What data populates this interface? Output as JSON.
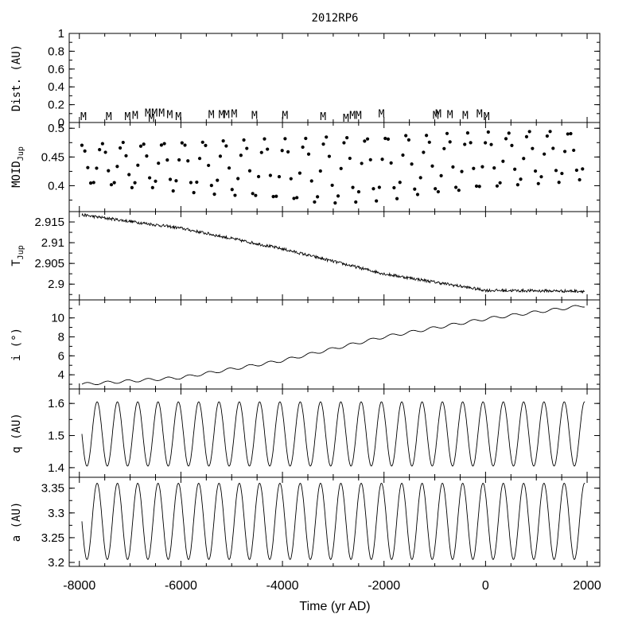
{
  "chart_data": {
    "type": "line",
    "title": "2012RP6",
    "xlabel": "Time (yr AD)",
    "xlim": [
      -8200,
      2250
    ],
    "x_ticks": [
      -8000,
      -6000,
      -4000,
      -2000,
      0,
      2000
    ],
    "x_tick_labels": [
      "-8000",
      "-6000",
      "-4000",
      "-2000",
      "0",
      "2000"
    ],
    "panels": [
      {
        "key": "dist",
        "type": "markers",
        "ylabel": "Dist. (AU)",
        "ylabel_main": "Dist. (AU)",
        "ylabel_sub": "",
        "ylim": [
          0,
          1
        ],
        "y_ticks": [
          0,
          0.2,
          0.4,
          0.6,
          0.8,
          1
        ],
        "y_tick_labels": [
          "0",
          "0.2",
          "0.4",
          "0.6",
          "0.8",
          "1"
        ],
        "marker_text": "M",
        "markers": [
          {
            "x": -7920,
            "y": 0.02
          },
          {
            "x": -7420,
            "y": 0.02
          },
          {
            "x": -7050,
            "y": 0.02
          },
          {
            "x": -6900,
            "y": 0.03
          },
          {
            "x": -6650,
            "y": 0.06
          },
          {
            "x": -6580,
            "y": 0.0
          },
          {
            "x": -6520,
            "y": 0.06
          },
          {
            "x": -6380,
            "y": 0.06
          },
          {
            "x": -6220,
            "y": 0.04
          },
          {
            "x": -6050,
            "y": 0.02
          },
          {
            "x": -5400,
            "y": 0.04
          },
          {
            "x": -5200,
            "y": 0.04
          },
          {
            "x": -5100,
            "y": 0.04
          },
          {
            "x": -4950,
            "y": 0.05
          },
          {
            "x": -4550,
            "y": 0.03
          },
          {
            "x": -3950,
            "y": 0.03
          },
          {
            "x": -3200,
            "y": 0.02
          },
          {
            "x": -2750,
            "y": 0.0
          },
          {
            "x": -2620,
            "y": 0.03
          },
          {
            "x": -2500,
            "y": 0.03
          },
          {
            "x": -2050,
            "y": 0.05
          },
          {
            "x": -980,
            "y": 0.03
          },
          {
            "x": -930,
            "y": 0.05
          },
          {
            "x": -700,
            "y": 0.04
          },
          {
            "x": -400,
            "y": 0.03
          },
          {
            "x": -120,
            "y": 0.05
          },
          {
            "x": 20,
            "y": 0.02
          }
        ]
      },
      {
        "key": "moid",
        "type": "scatter",
        "ylabel": "MOID_Jup",
        "ylabel_main": "MOID",
        "ylabel_sub": "Jup",
        "ylim": [
          0.355,
          0.51
        ],
        "y_ticks": [
          0.4,
          0.45,
          0.5
        ],
        "y_tick_labels": [
          "0.4",
          "0.45",
          "0.5"
        ],
        "period": 400,
        "x_start": -7950,
        "x_end": 1960,
        "step": 58,
        "upper_start": 0.472,
        "upper_end": 0.497,
        "lower_start": 0.405,
        "lower_mid": 0.368,
        "lower_end": 0.412
      },
      {
        "key": "tjup",
        "type": "line",
        "ylabel": "T_Jup",
        "ylabel_main": "T",
        "ylabel_sub": "Jup",
        "ylim": [
          2.8962,
          2.9175
        ],
        "y_ticks": [
          2.9,
          2.905,
          2.91,
          2.915
        ],
        "y_tick_labels": [
          "2.9",
          "2.905",
          "2.91",
          "2.915"
        ],
        "trend_x": [
          -7950,
          -6000,
          -4000,
          -2000,
          0,
          1950
        ],
        "trend_y": [
          2.9167,
          2.9135,
          2.9085,
          2.9025,
          2.8985,
          2.8983
        ],
        "noise": 0.0007
      },
      {
        "key": "incl",
        "type": "line",
        "ylabel": "i (°)",
        "ylabel_main": "i (°)",
        "ylabel_sub": "",
        "ylim": [
          2.5,
          11.9
        ],
        "y_ticks": [
          4,
          6,
          8,
          10
        ],
        "y_tick_labels": [
          "4",
          "6",
          "8",
          "10"
        ],
        "trend_x": [
          -7950,
          -6000,
          -4000,
          -2000,
          0,
          1950
        ],
        "trend_y": [
          3.0,
          3.7,
          5.5,
          8.0,
          9.9,
          11.3
        ],
        "period": 400,
        "amplitude": 0.15
      },
      {
        "key": "q",
        "type": "line",
        "ylabel": "q (AU)",
        "ylabel_main": "q (AU)",
        "ylabel_sub": "",
        "ylim": [
          1.37,
          1.645
        ],
        "y_ticks": [
          1.4,
          1.5,
          1.6
        ],
        "y_tick_labels": [
          "1.4",
          "1.5",
          "1.6"
        ],
        "period": 400,
        "mean": 1.505,
        "amplitude": 0.1,
        "phase_x": -7850
      },
      {
        "key": "a",
        "type": "line",
        "ylabel": "a (AU)",
        "ylabel_main": "a (AU)",
        "ylabel_sub": "",
        "ylim": [
          3.192,
          3.372
        ],
        "y_ticks": [
          3.2,
          3.25,
          3.3,
          3.35
        ],
        "y_tick_labels": [
          "3.2",
          "3.25",
          "3.3",
          "3.35"
        ],
        "period": 400,
        "mean": 3.283,
        "amplitude": 0.077,
        "phase_x": -7850
      }
    ]
  }
}
